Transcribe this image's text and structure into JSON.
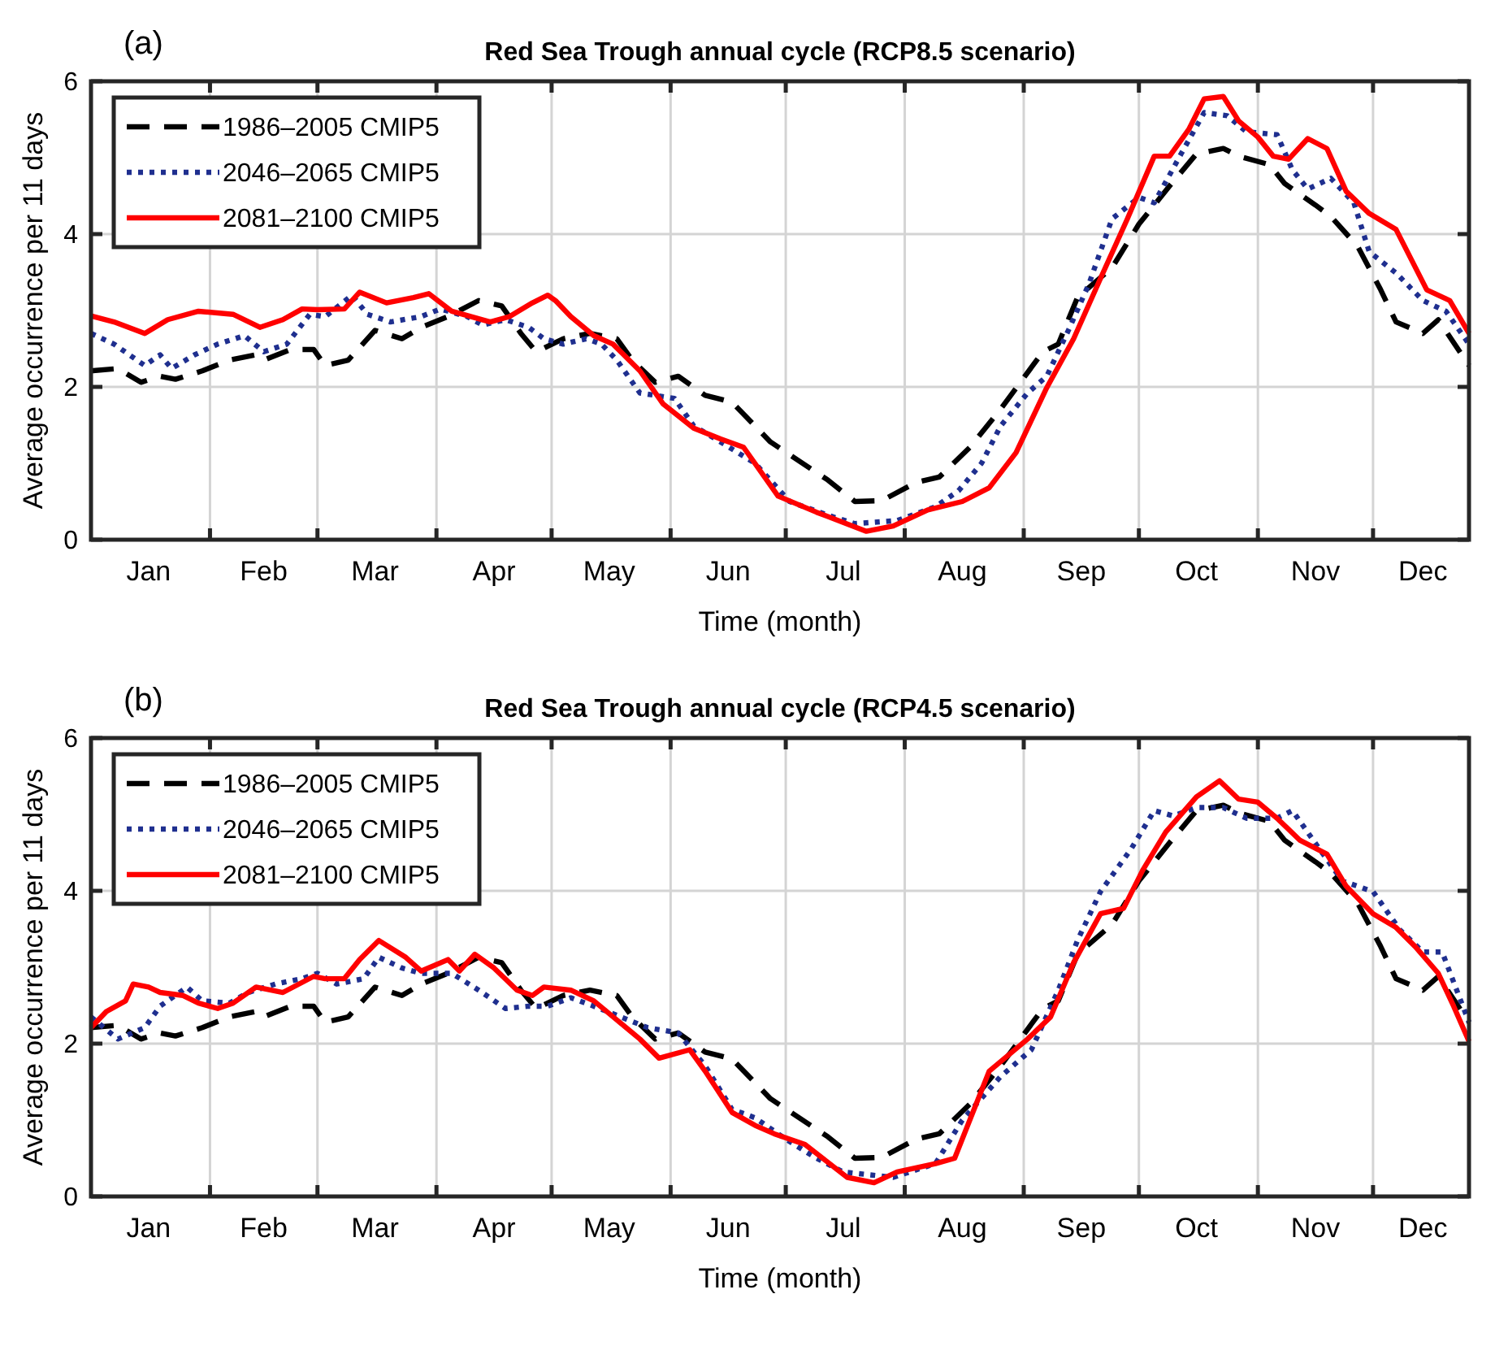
{
  "chart_data": [
    {
      "type": "line",
      "title": "Red Sea Trough annual cycle (RCP8.5 scenario)",
      "xlabel": "Time (month)",
      "ylabel": "Average occurrence per 11 days",
      "annotations": [
        "(a)"
      ],
      "xlim": [
        "--01-01",
        "--12-26"
      ],
      "ylim": [
        0,
        6
      ],
      "yticks": [
        0,
        2,
        4,
        6
      ],
      "xticks": [
        {
          "value": "--01-16",
          "label": "Jan"
        },
        {
          "value": "--02-01",
          "label": null
        },
        {
          "value": "--02-15",
          "label": "Feb"
        },
        {
          "value": "--03-01",
          "label": null
        },
        {
          "value": "--03-16",
          "label": "Mar"
        },
        {
          "value": "--04-01",
          "label": null
        },
        {
          "value": "--04-16",
          "label": "Apr"
        },
        {
          "value": "--05-01",
          "label": null
        },
        {
          "value": "--05-16",
          "label": "May"
        },
        {
          "value": "--06-01",
          "label": null
        },
        {
          "value": "--06-16",
          "label": "Jun"
        },
        {
          "value": "--07-01",
          "label": null
        },
        {
          "value": "--07-16",
          "label": "Jul"
        },
        {
          "value": "--08-01",
          "label": null
        },
        {
          "value": "--08-16",
          "label": "Aug"
        },
        {
          "value": "--09-01",
          "label": null
        },
        {
          "value": "--09-16",
          "label": "Sep"
        },
        {
          "value": "--10-01",
          "label": null
        },
        {
          "value": "--10-16",
          "label": "Oct"
        },
        {
          "value": "--11-01",
          "label": null
        },
        {
          "value": "--11-16",
          "label": "Nov"
        },
        {
          "value": "--12-01",
          "label": null
        },
        {
          "value": "--12-14",
          "label": "Dec"
        }
      ],
      "grid": true,
      "legend": "top left",
      "series": [
        {
          "name": "1986–2005 CMIP5",
          "color": "#000000",
          "line_style": "dashed",
          "x": [
            "--01-01",
            "--01-08",
            "--01-14",
            "--01-19",
            "--01-23",
            "--01-30",
            "--02-06",
            "--02-13",
            "--02-15",
            "--02-22",
            "--02-28",
            "--03-03",
            "--03-09",
            "--03-16",
            "--03-23",
            "--03-28",
            "--04-04",
            "--04-12",
            "--04-18",
            "--04-23",
            "--04-27",
            "--05-04",
            "--05-11",
            "--05-18",
            "--05-22",
            "--05-28",
            "--06-03",
            "--06-10",
            "--06-17",
            "--06-27",
            "--07-12",
            "--07-19",
            "--07-26",
            "--08-04",
            "--08-10",
            "--08-18",
            "--08-26",
            "--09-06",
            "--09-10",
            "--09-15",
            "--09-24",
            "--10-01",
            "--10-09",
            "--10-16",
            "--10-23",
            "--10-27",
            "--11-04",
            "--11-08",
            "--11-16",
            "--11-20",
            "--11-27",
            "--12-03",
            "--12-07",
            "--12-14",
            "--12-18",
            "--12-26"
          ],
          "values": [
            2.21,
            2.24,
            2.06,
            2.14,
            2.1,
            2.21,
            2.35,
            2.42,
            2.35,
            2.49,
            2.49,
            2.28,
            2.35,
            2.74,
            2.63,
            2.78,
            2.92,
            3.13,
            3.06,
            2.7,
            2.46,
            2.63,
            2.7,
            2.63,
            2.35,
            2.06,
            2.14,
            1.89,
            1.8,
            1.28,
            0.78,
            0.5,
            0.51,
            0.75,
            0.82,
            1.21,
            1.71,
            2.46,
            2.56,
            3.17,
            3.56,
            4.13,
            4.63,
            5.05,
            5.12,
            5.02,
            4.91,
            4.66,
            4.38,
            4.23,
            3.84,
            3.27,
            2.85,
            2.7,
            2.88,
            2.28
          ]
        },
        {
          "name": "2046–2065 CMIP5",
          "color": "#1f2f8f",
          "line_style": "dotted",
          "x": [
            "--01-01",
            "--01-07",
            "--01-15",
            "--01-19",
            "--01-22",
            "--01-28",
            "--02-03",
            "--02-10",
            "--02-15",
            "--02-21",
            "--02-27",
            "--03-03",
            "--03-10",
            "--03-14",
            "--03-20",
            "--03-28",
            "--04-02",
            "--04-09",
            "--04-13",
            "--04-19",
            "--04-25",
            "--04-29",
            "--05-04",
            "--05-10",
            "--05-14",
            "--05-18",
            "--05-24",
            "--06-02",
            "--06-07",
            "--06-14",
            "--06-23",
            "--07-02",
            "--07-12",
            "--07-19",
            "--07-30",
            "--08-09",
            "--08-15",
            "--08-21",
            "--08-26",
            "--09-02",
            "--09-07",
            "--09-13",
            "--09-18",
            "--09-24",
            "--10-01",
            "--10-05",
            "--10-12",
            "--10-18",
            "--10-24",
            "--10-29",
            "--11-06",
            "--11-10",
            "--11-14",
            "--11-20",
            "--11-26",
            "--11-30",
            "--12-07",
            "--12-14",
            "--12-20",
            "--12-26"
          ],
          "values": [
            2.7,
            2.56,
            2.28,
            2.42,
            2.24,
            2.42,
            2.56,
            2.67,
            2.46,
            2.56,
            2.95,
            2.92,
            3.2,
            2.95,
            2.85,
            2.92,
            3.02,
            2.92,
            2.81,
            2.88,
            2.78,
            2.63,
            2.56,
            2.63,
            2.56,
            2.35,
            1.92,
            1.85,
            1.49,
            1.28,
            1.0,
            0.5,
            0.32,
            0.21,
            0.25,
            0.43,
            0.64,
            1.0,
            1.49,
            1.92,
            2.14,
            2.78,
            3.35,
            4.2,
            4.48,
            4.41,
            5.05,
            5.59,
            5.55,
            5.34,
            5.3,
            4.84,
            4.59,
            4.73,
            4.41,
            3.77,
            3.49,
            3.13,
            2.99,
            2.56
          ]
        },
        {
          "name": "2081–2100 CMIP5",
          "color": "#ff0000",
          "line_style": "solid",
          "x": [
            "--01-01",
            "--01-07",
            "--01-15",
            "--01-21",
            "--01-29",
            "--02-07",
            "--02-14",
            "--02-20",
            "--02-25",
            "--03-01",
            "--03-08",
            "--03-12",
            "--03-19",
            "--03-26",
            "--03-30",
            "--04-05",
            "--04-15",
            "--04-20",
            "--04-26",
            "--04-30",
            "--05-02",
            "--05-06",
            "--05-12",
            "--05-17",
            "--05-24",
            "--05-30",
            "--06-07",
            "--06-14",
            "--06-20",
            "--06-29",
            "--07-09",
            "--07-22",
            "--07-29",
            "--08-07",
            "--08-16",
            "--08-23",
            "--08-30",
            "--09-07",
            "--09-14",
            "--09-21",
            "--09-28",
            "--10-05",
            "--10-09",
            "--10-14",
            "--10-18",
            "--10-23",
            "--10-27",
            "--11-01",
            "--11-05",
            "--11-09",
            "--11-14",
            "--11-19",
            "--11-24",
            "--11-30",
            "--12-07",
            "--12-15",
            "--12-21",
            "--12-26"
          ],
          "values": [
            2.93,
            2.85,
            2.7,
            2.88,
            2.99,
            2.95,
            2.78,
            2.88,
            3.02,
            3.01,
            3.02,
            3.24,
            3.1,
            3.17,
            3.22,
            2.99,
            2.85,
            2.92,
            3.1,
            3.2,
            3.13,
            2.92,
            2.67,
            2.56,
            2.21,
            1.78,
            1.46,
            1.32,
            1.21,
            0.57,
            0.36,
            0.11,
            0.18,
            0.39,
            0.5,
            0.68,
            1.14,
            1.99,
            2.63,
            3.42,
            4.2,
            5.02,
            5.02,
            5.37,
            5.77,
            5.8,
            5.48,
            5.27,
            5.02,
            4.98,
            5.25,
            5.12,
            4.56,
            4.27,
            4.06,
            3.27,
            3.13,
            2.7
          ]
        }
      ]
    },
    {
      "type": "line",
      "title": "Red Sea Trough annual cycle (RCP4.5 scenario)",
      "xlabel": "Time (month)",
      "ylabel": "Average occurrence per 11 days",
      "annotations": [
        "(b)"
      ],
      "xlim": [
        "--01-01",
        "--12-26"
      ],
      "ylim": [
        0,
        6
      ],
      "yticks": [
        0,
        2,
        4,
        6
      ],
      "xticks": [
        {
          "value": "--01-16",
          "label": "Jan"
        },
        {
          "value": "--02-01",
          "label": null
        },
        {
          "value": "--02-15",
          "label": "Feb"
        },
        {
          "value": "--03-01",
          "label": null
        },
        {
          "value": "--03-16",
          "label": "Mar"
        },
        {
          "value": "--04-01",
          "label": null
        },
        {
          "value": "--04-16",
          "label": "Apr"
        },
        {
          "value": "--05-01",
          "label": null
        },
        {
          "value": "--05-16",
          "label": "May"
        },
        {
          "value": "--06-01",
          "label": null
        },
        {
          "value": "--06-16",
          "label": "Jun"
        },
        {
          "value": "--07-01",
          "label": null
        },
        {
          "value": "--07-16",
          "label": "Jul"
        },
        {
          "value": "--08-01",
          "label": null
        },
        {
          "value": "--08-16",
          "label": "Aug"
        },
        {
          "value": "--09-01",
          "label": null
        },
        {
          "value": "--09-16",
          "label": "Sep"
        },
        {
          "value": "--10-01",
          "label": null
        },
        {
          "value": "--10-16",
          "label": "Oct"
        },
        {
          "value": "--11-01",
          "label": null
        },
        {
          "value": "--11-16",
          "label": "Nov"
        },
        {
          "value": "--12-01",
          "label": null
        },
        {
          "value": "--12-14",
          "label": "Dec"
        }
      ],
      "grid": true,
      "legend": "top left",
      "series": [
        {
          "name": "1986–2005 CMIP5",
          "color": "#000000",
          "line_style": "dashed",
          "x": [
            "--01-01",
            "--01-08",
            "--01-14",
            "--01-19",
            "--01-23",
            "--01-30",
            "--02-06",
            "--02-13",
            "--02-15",
            "--02-22",
            "--02-28",
            "--03-03",
            "--03-09",
            "--03-16",
            "--03-23",
            "--03-28",
            "--04-04",
            "--04-12",
            "--04-18",
            "--04-23",
            "--04-27",
            "--05-04",
            "--05-11",
            "--05-18",
            "--05-22",
            "--05-28",
            "--06-03",
            "--06-10",
            "--06-17",
            "--06-27",
            "--07-12",
            "--07-19",
            "--07-26",
            "--08-04",
            "--08-10",
            "--08-18",
            "--08-26",
            "--09-06",
            "--09-10",
            "--09-15",
            "--09-24",
            "--10-01",
            "--10-09",
            "--10-16",
            "--10-23",
            "--10-27",
            "--11-04",
            "--11-08",
            "--11-16",
            "--11-20",
            "--11-27",
            "--12-03",
            "--12-07",
            "--12-14",
            "--12-18",
            "--12-26"
          ],
          "values": [
            2.21,
            2.24,
            2.06,
            2.14,
            2.1,
            2.21,
            2.35,
            2.42,
            2.35,
            2.49,
            2.49,
            2.28,
            2.35,
            2.74,
            2.63,
            2.78,
            2.92,
            3.13,
            3.06,
            2.7,
            2.46,
            2.63,
            2.7,
            2.63,
            2.35,
            2.06,
            2.14,
            1.89,
            1.8,
            1.28,
            0.78,
            0.5,
            0.51,
            0.75,
            0.82,
            1.21,
            1.71,
            2.46,
            2.56,
            3.17,
            3.56,
            4.13,
            4.63,
            5.05,
            5.12,
            5.02,
            4.91,
            4.66,
            4.38,
            4.23,
            3.84,
            3.27,
            2.85,
            2.7,
            2.88,
            2.28
          ]
        },
        {
          "name": "2046–2065 CMIP5",
          "color": "#1f2f8f",
          "line_style": "dotted",
          "x": [
            "--01-01",
            "--01-08",
            "--01-15",
            "--01-19",
            "--01-26",
            "--01-30",
            "--02-06",
            "--02-11",
            "--02-18",
            "--02-25",
            "--03-01",
            "--03-06",
            "--03-13",
            "--03-17",
            "--03-23",
            "--03-28",
            "--04-05",
            "--04-12",
            "--04-19",
            "--04-25",
            "--04-30",
            "--05-06",
            "--05-12",
            "--05-19",
            "--05-26",
            "--06-03",
            "--06-10",
            "--06-17",
            "--06-23",
            "--07-01",
            "--07-09",
            "--07-16",
            "--07-29",
            "--08-09",
            "--08-16",
            "--08-26",
            "--09-03",
            "--09-10",
            "--09-15",
            "--09-21",
            "--09-29",
            "--10-05",
            "--10-10",
            "--10-16",
            "--10-23",
            "--10-29",
            "--11-06",
            "--11-10",
            "--11-17",
            "--11-23",
            "--12-01",
            "--12-08",
            "--12-14",
            "--12-19",
            "--12-26"
          ],
          "values": [
            2.35,
            2.06,
            2.21,
            2.49,
            2.74,
            2.56,
            2.53,
            2.67,
            2.78,
            2.85,
            2.92,
            2.78,
            2.85,
            3.13,
            2.99,
            2.92,
            2.92,
            2.7,
            2.46,
            2.49,
            2.49,
            2.6,
            2.49,
            2.35,
            2.21,
            2.14,
            1.71,
            1.14,
            1.03,
            0.75,
            0.5,
            0.32,
            0.25,
            0.43,
            1.0,
            1.57,
            1.92,
            2.7,
            3.35,
            3.99,
            4.55,
            5.05,
            4.98,
            5.09,
            5.09,
            4.95,
            4.95,
            5.05,
            4.55,
            4.13,
            3.99,
            3.49,
            3.2,
            3.2,
            2.28
          ]
        },
        {
          "name": "2081–2100 CMIP5",
          "color": "#ff0000",
          "line_style": "solid",
          "x": [
            "--01-01",
            "--01-05",
            "--01-10",
            "--01-12",
            "--01-16",
            "--01-19",
            "--01-25",
            "--01-29",
            "--02-03",
            "--02-07",
            "--02-13",
            "--02-20",
            "--02-28",
            "--03-03",
            "--03-08",
            "--03-12",
            "--03-17",
            "--03-24",
            "--03-28",
            "--04-04",
            "--04-07",
            "--04-11",
            "--04-16",
            "--04-22",
            "--04-26",
            "--04-29",
            "--05-06",
            "--05-12",
            "--05-18",
            "--05-24",
            "--05-29",
            "--06-06",
            "--06-10",
            "--06-17",
            "--06-23",
            "--06-28",
            "--07-06",
            "--07-17",
            "--07-24",
            "--07-30",
            "--08-09",
            "--08-14",
            "--08-23",
            "--09-02",
            "--09-08",
            "--09-14",
            "--09-21",
            "--09-27",
            "--10-02",
            "--10-08",
            "--10-16",
            "--10-22",
            "--10-27",
            "--11-01",
            "--11-06",
            "--11-12",
            "--11-19",
            "--11-24",
            "--12-01",
            "--12-07",
            "--12-12",
            "--12-18",
            "--12-22",
            "--12-26"
          ],
          "values": [
            2.21,
            2.42,
            2.56,
            2.78,
            2.74,
            2.67,
            2.63,
            2.53,
            2.46,
            2.53,
            2.74,
            2.67,
            2.88,
            2.85,
            2.85,
            3.1,
            3.35,
            3.13,
            2.95,
            3.1,
            2.95,
            3.17,
            2.99,
            2.7,
            2.63,
            2.74,
            2.7,
            2.56,
            2.31,
            2.06,
            1.81,
            1.92,
            1.64,
            1.1,
            0.93,
            0.82,
            0.68,
            0.25,
            0.18,
            0.32,
            0.43,
            0.5,
            1.64,
            2.06,
            2.35,
            3.06,
            3.7,
            3.77,
            4.27,
            4.77,
            5.23,
            5.44,
            5.2,
            5.16,
            4.95,
            4.66,
            4.48,
            4.06,
            3.7,
            3.52,
            3.27,
            2.92,
            2.49,
            2.03
          ]
        }
      ]
    }
  ]
}
